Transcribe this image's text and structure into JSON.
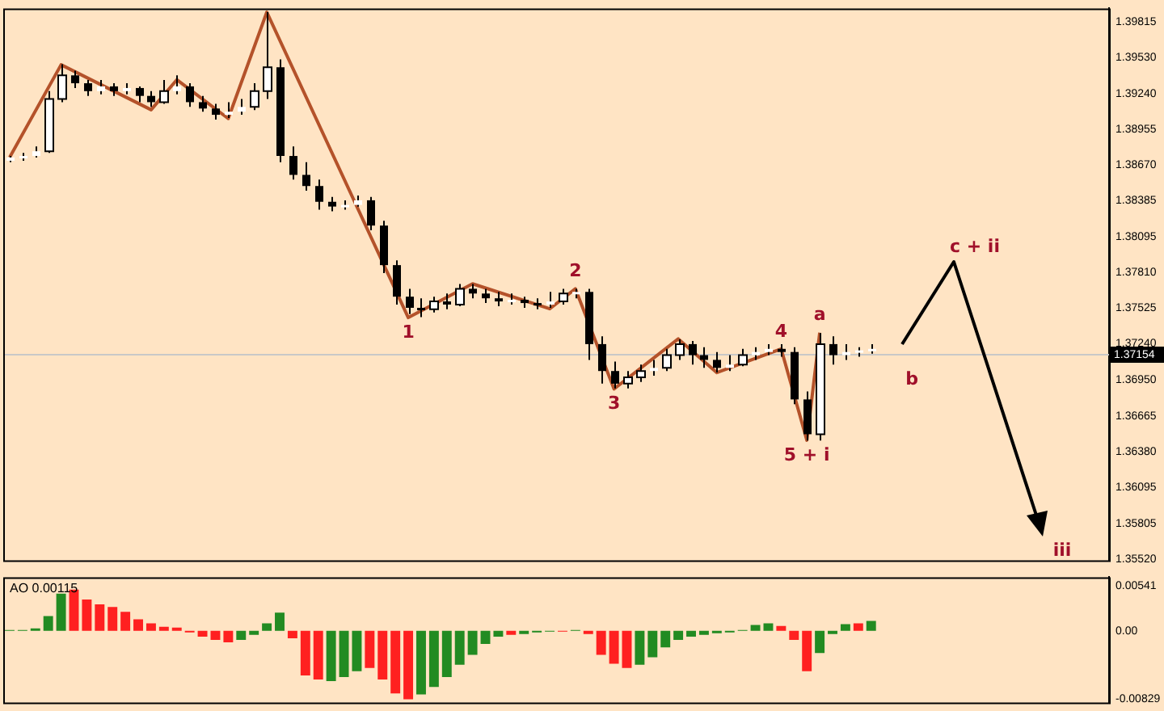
{
  "chart_data": [
    {
      "type": "candlestick",
      "categories": [
        null,
        null,
        null,
        null,
        null,
        null,
        null,
        null,
        null,
        null,
        null,
        null,
        null,
        null,
        null,
        null,
        null,
        null,
        null,
        null,
        null,
        null,
        null,
        null,
        null,
        null,
        null,
        null,
        null,
        null,
        null,
        null,
        null,
        null,
        null,
        null,
        null,
        null,
        null,
        null,
        null,
        null,
        null,
        null,
        null,
        null,
        null,
        null,
        null,
        null,
        null,
        null,
        null,
        null,
        null,
        null,
        null,
        null,
        null,
        null,
        null,
        null,
        null,
        null,
        null,
        null,
        null,
        null,
        null,
        null,
        null,
        null,
        null,
        null,
        null,
        null,
        null,
        null,
        null,
        null,
        null,
        null,
        null,
        null,
        null,
        null
      ],
      "ylim": [
        1.3551,
        1.3992
      ],
      "yticks": [
        {
          "value": 1.3552,
          "label": "1.35520"
        },
        {
          "value": 1.35805,
          "label": "1.35805"
        },
        {
          "value": 1.36095,
          "label": "1.36095"
        },
        {
          "value": 1.3638,
          "label": "1.36380"
        },
        {
          "value": 1.36665,
          "label": "1.36665"
        },
        {
          "value": 1.3695,
          "label": "1.36950"
        },
        {
          "value": 1.3724,
          "label": "1.37240"
        },
        {
          "value": 1.37525,
          "label": "1.37525"
        },
        {
          "value": 1.3781,
          "label": "1.37810"
        },
        {
          "value": 1.38095,
          "label": "1.38095"
        },
        {
          "value": 1.38385,
          "label": "1.38385"
        },
        {
          "value": 1.3867,
          "label": "1.38670"
        },
        {
          "value": 1.38955,
          "label": "1.38955"
        },
        {
          "value": 1.3924,
          "label": "1.39240"
        },
        {
          "value": 1.3953,
          "label": "1.39530"
        },
        {
          "value": 1.39815,
          "label": "1.39815"
        }
      ],
      "tick_labels": "y",
      "grid": false,
      "legend": false,
      "ref_lines": [
        {
          "axis": "y",
          "value": 1.37154,
          "label": "1.37154",
          "color": "#c8c8c8"
        }
      ],
      "annotations": [
        {
          "text": "1",
          "y": 1.3745
        },
        {
          "text": "2",
          "y": 1.3768
        },
        {
          "text": "3",
          "y": 1.3688
        },
        {
          "text": "4",
          "y": 1.372
        },
        {
          "text": "5 + i",
          "y": 1.3647
        },
        {
          "text": "a",
          "y": 1.3733
        },
        "b",
        "c + ii",
        "iii"
      ],
      "series": [
        {
          "type": "candlestick",
          "color": "#000000",
          "colors": [
            "#ffffff",
            "#ffffff",
            "#ffffff",
            "#ffffff",
            "#ffffff",
            "#000000",
            "#000000",
            "#ffffff",
            "#000000",
            "#ffffff",
            "#000000",
            "#000000",
            "#ffffff",
            "#ffffff",
            "#000000",
            "#000000",
            "#000000",
            "#ffffff",
            "#ffffff",
            "#ffffff",
            "#ffffff",
            "#000000",
            "#000000",
            "#000000",
            "#000000",
            "#000000",
            "#ffffff",
            "#ffffff",
            "#000000",
            "#000000",
            "#000000",
            "#000000",
            "#000000",
            "#ffffff",
            "#000000",
            "#ffffff",
            "#000000",
            "#000000",
            "#000000",
            "#ffffff",
            "#000000",
            "#000000",
            "#ffffff",
            "#ffffff",
            "#ffffff",
            "#000000",
            "#000000",
            "#000000",
            "#ffffff",
            "#ffffff",
            "#ffffff",
            "#ffffff",
            "#ffffff",
            "#000000",
            "#000000",
            "#000000",
            "#ffffff",
            "#ffffff",
            "#ffffff",
            "#ffffff",
            "#000000",
            "#000000",
            "#000000",
            "#ffffff",
            "#000000",
            "#ffffff",
            "#ffffff",
            "#ffffff",
            null,
            null,
            null,
            null,
            null,
            null,
            null,
            null,
            null,
            null,
            null,
            null,
            null,
            null,
            null,
            null,
            null,
            null
          ],
          "ohlc": [
            [
              1.38703,
              1.38741,
              1.38691,
              1.38729
            ],
            [
              1.38729,
              1.38766,
              1.38703,
              1.38741
            ],
            [
              1.38741,
              1.38817,
              1.38729,
              1.38779
            ],
            [
              1.38779,
              1.39259,
              1.38766,
              1.39196
            ],
            [
              1.39196,
              1.39474,
              1.39171,
              1.39385
            ],
            [
              1.39385,
              1.39423,
              1.39284,
              1.39322
            ],
            [
              1.39322,
              1.39348,
              1.39221,
              1.39259
            ],
            [
              1.39259,
              1.39348,
              1.39234,
              1.39297
            ],
            [
              1.39297,
              1.39322,
              1.39221,
              1.39259
            ],
            [
              1.39259,
              1.39322,
              1.39234,
              1.39284
            ],
            [
              1.39284,
              1.39297,
              1.39171,
              1.39221
            ],
            [
              1.39221,
              1.39259,
              1.39133,
              1.39171
            ],
            [
              1.39171,
              1.39348,
              1.39158,
              1.39259
            ],
            [
              1.39259,
              1.39385,
              1.39234,
              1.39297
            ],
            [
              1.39297,
              1.39322,
              1.39133,
              1.39171
            ],
            [
              1.39171,
              1.39221,
              1.39095,
              1.3912
            ],
            [
              1.3912,
              1.39158,
              1.39032,
              1.3907
            ],
            [
              1.3907,
              1.39171,
              1.39044,
              1.39095
            ],
            [
              1.39095,
              1.39196,
              1.3907,
              1.39133
            ],
            [
              1.39133,
              1.39322,
              1.39108,
              1.39259
            ],
            [
              1.39259,
              1.39891,
              1.39196,
              1.39449
            ],
            [
              1.39449,
              1.39512,
              1.38691,
              1.38741
            ],
            [
              1.38741,
              1.38817,
              1.38552,
              1.3859
            ],
            [
              1.3859,
              1.38691,
              1.38463,
              1.38501
            ],
            [
              1.38501,
              1.38552,
              1.38312,
              1.38375
            ],
            [
              1.38375,
              1.38413,
              1.38299,
              1.38337
            ],
            [
              1.38337,
              1.38387,
              1.38312,
              1.3835
            ],
            [
              1.3835,
              1.38425,
              1.38337,
              1.38387
            ],
            [
              1.38387,
              1.38413,
              1.38147,
              1.38185
            ],
            [
              1.38185,
              1.38223,
              1.37806,
              1.37869
            ],
            [
              1.37869,
              1.37907,
              1.37554,
              1.37617
            ],
            [
              1.37617,
              1.3768,
              1.37478,
              1.37528
            ],
            [
              1.37528,
              1.37604,
              1.37453,
              1.37516
            ],
            [
              1.37516,
              1.37617,
              1.37491,
              1.37579
            ],
            [
              1.37579,
              1.37642,
              1.37516,
              1.37554
            ],
            [
              1.37554,
              1.37718,
              1.37541,
              1.3768
            ],
            [
              1.3768,
              1.37718,
              1.37604,
              1.37642
            ],
            [
              1.37642,
              1.3768,
              1.37566,
              1.37604
            ],
            [
              1.37604,
              1.37655,
              1.37541,
              1.37579
            ],
            [
              1.37579,
              1.37642,
              1.37554,
              1.37592
            ],
            [
              1.37592,
              1.37617,
              1.37528,
              1.37566
            ],
            [
              1.37566,
              1.37604,
              1.37516,
              1.37554
            ],
            [
              1.37554,
              1.37655,
              1.37528,
              1.37579
            ],
            [
              1.37579,
              1.3768,
              1.37554,
              1.37642
            ],
            [
              1.37642,
              1.3768,
              1.37604,
              1.37655
            ],
            [
              1.37655,
              1.3768,
              1.37112,
              1.37238
            ],
            [
              1.37238,
              1.37301,
              1.36922,
              1.37023
            ],
            [
              1.37023,
              1.37099,
              1.36884,
              1.36922
            ],
            [
              1.36922,
              1.37023,
              1.36884,
              1.36973
            ],
            [
              1.36973,
              1.37074,
              1.36935,
              1.37023
            ],
            [
              1.37023,
              1.37112,
              1.36985,
              1.37048
            ],
            [
              1.37048,
              1.372,
              1.37023,
              1.3715
            ],
            [
              1.3715,
              1.37276,
              1.37112,
              1.37238
            ],
            [
              1.37238,
              1.37263,
              1.37074,
              1.3715
            ],
            [
              1.3715,
              1.37213,
              1.37048,
              1.37112
            ],
            [
              1.37112,
              1.37175,
              1.37011,
              1.37048
            ],
            [
              1.37048,
              1.3715,
              1.37023,
              1.37074
            ],
            [
              1.37074,
              1.372,
              1.37061,
              1.3715
            ],
            [
              1.3715,
              1.37213,
              1.37112,
              1.37175
            ],
            [
              1.37175,
              1.37238,
              1.3715,
              1.372
            ],
            [
              1.372,
              1.37238,
              1.37137,
              1.37175
            ],
            [
              1.37175,
              1.37213,
              1.36758,
              1.36796
            ],
            [
              1.36796,
              1.36859,
              1.36467,
              1.36518
            ],
            [
              1.36518,
              1.37326,
              1.36467,
              1.37238
            ],
            [
              1.37238,
              1.37301,
              1.37074,
              1.3715
            ],
            [
              1.3715,
              1.37238,
              1.37112,
              1.37175
            ],
            [
              1.37175,
              1.37213,
              1.37137,
              1.37188
            ],
            [
              1.37188,
              1.37238,
              1.37162,
              1.372
            ],
            null,
            null,
            null,
            null,
            null,
            null,
            null,
            null,
            null,
            null,
            null,
            null,
            null,
            null,
            null,
            null,
            null,
            null
          ]
        },
        {
          "type": "line",
          "color": "#b4522a",
          "values": [
            1.3873,
            null,
            null,
            null,
            1.3947,
            null,
            null,
            null,
            null,
            null,
            null,
            1.3911,
            null,
            1.3935,
            null,
            null,
            null,
            1.3904,
            null,
            null,
            1.3989,
            null,
            null,
            null,
            null,
            null,
            null,
            null,
            null,
            null,
            null,
            1.3745,
            null,
            null,
            null,
            null,
            1.3772,
            null,
            null,
            null,
            null,
            null,
            1.3752,
            null,
            1.3768,
            null,
            null,
            1.3688,
            null,
            null,
            null,
            null,
            1.3728,
            null,
            null,
            1.3701,
            null,
            null,
            null,
            null,
            1.372,
            null,
            1.3647,
            1.3733,
            null,
            null,
            null,
            null,
            null,
            null,
            null,
            null,
            null,
            null,
            null,
            null,
            null,
            null,
            null,
            null,
            null,
            null,
            null,
            null,
            null,
            null
          ]
        }
      ]
    },
    {
      "type": "bar",
      "title": "AO 0.00115",
      "categories": [
        null,
        null,
        null,
        null,
        null,
        null,
        null,
        null,
        null,
        null,
        null,
        null,
        null,
        null,
        null,
        null,
        null,
        null,
        null,
        null,
        null,
        null,
        null,
        null,
        null,
        null,
        null,
        null,
        null,
        null,
        null,
        null,
        null,
        null,
        null,
        null,
        null,
        null,
        null,
        null,
        null,
        null,
        null,
        null,
        null,
        null,
        null,
        null,
        null,
        null,
        null,
        null,
        null,
        null,
        null,
        null,
        null,
        null,
        null,
        null,
        null,
        null,
        null,
        null,
        null,
        null,
        null,
        null,
        null,
        null,
        null,
        null,
        null,
        null,
        null,
        null,
        null,
        null,
        null,
        null,
        null,
        null,
        null,
        null,
        null,
        null
      ],
      "ylim": [
        -0.0087,
        0.0065
      ],
      "yticks": [
        {
          "value": -0.00829,
          "label": "-0.00829"
        },
        {
          "value": 0,
          "label": "0.00"
        },
        {
          "value": 0.00541,
          "label": "0.00541"
        }
      ],
      "tick_labels": "y",
      "grid": false,
      "legend": false,
      "values": [
        0.0001,
        0.0001,
        0.0003,
        0.0018,
        0.0045,
        0.005,
        0.0038,
        0.0032,
        0.0029,
        0.0023,
        0.0014,
        0.0009,
        0.0005,
        0.0004,
        -0.0002,
        -0.0007,
        -0.0011,
        -0.0014,
        -0.0011,
        -0.0005,
        0.0009,
        0.0022,
        -0.0009,
        -0.0054,
        -0.0059,
        -0.0061,
        -0.0056,
        -0.0049,
        -0.0045,
        -0.0059,
        -0.0076,
        -0.0083,
        -0.0077,
        -0.0068,
        -0.0056,
        -0.0041,
        -0.0029,
        -0.0016,
        -0.0007,
        -0.0005,
        -0.0004,
        -0.0002,
        -0.0001,
        -0.0001,
        0.0001,
        -0.0004,
        -0.0029,
        -0.004,
        -0.0045,
        -0.0041,
        -0.0032,
        -0.002,
        -0.0011,
        -0.0007,
        -0.0005,
        -0.0003,
        -0.0002,
        0.0001,
        0.0007,
        0.0009,
        0.0006,
        -0.0011,
        -0.0049,
        -0.0027,
        -0.0004,
        0.0008,
        0.0009,
        0.0012,
        null,
        null,
        null,
        null,
        null,
        null,
        null,
        null,
        null,
        null,
        null,
        null,
        null,
        null,
        null,
        null,
        null,
        null
      ],
      "colors": [
        "#228b22",
        "#228b22",
        "#228b22",
        "#228b22",
        "#228b22",
        "#ff2020",
        "#ff2020",
        "#ff2020",
        "#ff2020",
        "#ff2020",
        "#ff2020",
        "#ff2020",
        "#ff2020",
        "#ff2020",
        "#ff2020",
        "#ff2020",
        "#ff2020",
        "#ff2020",
        "#228b22",
        "#228b22",
        "#228b22",
        "#228b22",
        "#ff2020",
        "#ff2020",
        "#ff2020",
        "#228b22",
        "#228b22",
        "#228b22",
        "#ff2020",
        "#ff2020",
        "#ff2020",
        "#ff2020",
        "#228b22",
        "#228b22",
        "#228b22",
        "#228b22",
        "#228b22",
        "#228b22",
        "#228b22",
        "#ff2020",
        "#228b22",
        "#228b22",
        "#228b22",
        "#ff2020",
        "#228b22",
        "#ff2020",
        "#ff2020",
        "#ff2020",
        "#ff2020",
        "#228b22",
        "#228b22",
        "#228b22",
        "#228b22",
        "#228b22",
        "#228b22",
        "#228b22",
        "#228b22",
        "#228b22",
        "#228b22",
        "#228b22",
        "#ff2020",
        "#ff2020",
        "#ff2020",
        "#228b22",
        "#228b22",
        "#228b22",
        "#ff2020",
        "#228b22",
        null,
        null,
        null,
        null,
        null,
        null,
        null,
        null,
        null,
        null,
        null,
        null,
        null,
        null,
        null,
        null,
        null,
        null
      ]
    }
  ]
}
